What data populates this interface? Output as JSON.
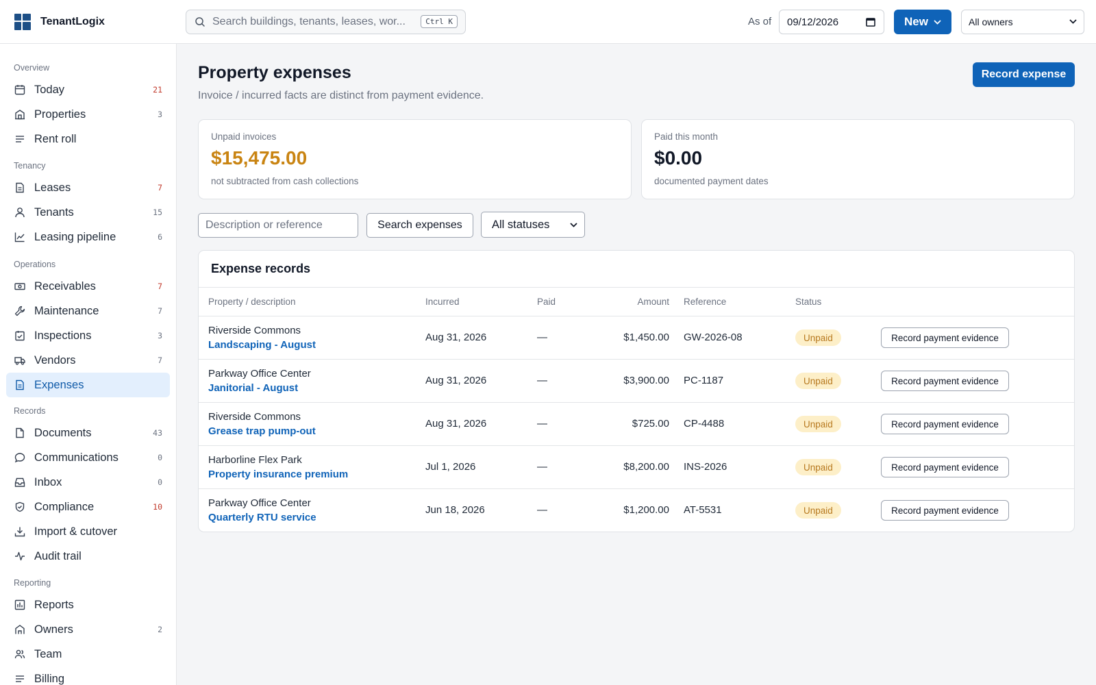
{
  "app": {
    "name": "TenantLogix"
  },
  "topbar": {
    "search_placeholder": "Search buildings, tenants, leases, wor...",
    "search_shortcut": "Ctrl K",
    "as_of_label": "As of",
    "as_of_date": "09/12/2026",
    "new_label": "New",
    "owner_filter": "All owners"
  },
  "sidebar": {
    "sections": [
      {
        "title": "Overview",
        "items": [
          {
            "label": "Today",
            "icon": "calendar-icon",
            "count": "21",
            "count_color": "red"
          },
          {
            "label": "Properties",
            "icon": "building-icon",
            "count": "3"
          },
          {
            "label": "Rent roll",
            "icon": "list-icon",
            "count": ""
          }
        ]
      },
      {
        "title": "Tenancy",
        "items": [
          {
            "label": "Leases",
            "icon": "document-icon",
            "count": "7",
            "count_color": "red"
          },
          {
            "label": "Tenants",
            "icon": "user-icon",
            "count": "15"
          },
          {
            "label": "Leasing pipeline",
            "icon": "chart-line-icon",
            "count": "6"
          }
        ]
      },
      {
        "title": "Operations",
        "items": [
          {
            "label": "Receivables",
            "icon": "cash-icon",
            "count": "7",
            "count_color": "red"
          },
          {
            "label": "Maintenance",
            "icon": "wrench-icon",
            "count": "7"
          },
          {
            "label": "Inspections",
            "icon": "clipboard-check-icon",
            "count": "3"
          },
          {
            "label": "Vendors",
            "icon": "truck-icon",
            "count": "7"
          },
          {
            "label": "Expenses",
            "icon": "receipt-icon",
            "count": "",
            "active": true
          }
        ]
      },
      {
        "title": "Records",
        "items": [
          {
            "label": "Documents",
            "icon": "file-icon",
            "count": "43"
          },
          {
            "label": "Communications",
            "icon": "chat-icon",
            "count": "0"
          },
          {
            "label": "Inbox",
            "icon": "inbox-icon",
            "count": "0"
          },
          {
            "label": "Compliance",
            "icon": "shield-icon",
            "count": "10",
            "count_color": "red"
          },
          {
            "label": "Import & cutover",
            "icon": "download-icon",
            "count": ""
          },
          {
            "label": "Audit trail",
            "icon": "activity-icon",
            "count": ""
          }
        ]
      },
      {
        "title": "Reporting",
        "items": [
          {
            "label": "Reports",
            "icon": "bar-chart-icon",
            "count": ""
          },
          {
            "label": "Owners",
            "icon": "home-icon",
            "count": "2"
          },
          {
            "label": "Team",
            "icon": "users-icon",
            "count": ""
          },
          {
            "label": "Billing",
            "icon": "list-icon",
            "count": ""
          }
        ]
      }
    ]
  },
  "page": {
    "title": "Property expenses",
    "subtitle": "Invoice / incurred facts are distinct from payment evidence.",
    "record_expense_label": "Record expense"
  },
  "summary_cards": [
    {
      "label": "Unpaid invoices",
      "value": "$15,475.00",
      "note": "not subtracted from cash collections",
      "value_color": "#c98412"
    },
    {
      "label": "Paid this month",
      "value": "$0.00",
      "note": "documented payment dates",
      "value_color": "#111827"
    }
  ],
  "filters": {
    "search_placeholder": "Description or reference",
    "search_button": "Search expenses",
    "status_value": "All statuses"
  },
  "expense_table": {
    "title": "Expense records",
    "columns": [
      "Property / description",
      "Incurred",
      "Paid",
      "Amount",
      "Reference",
      "Status"
    ],
    "rows": [
      {
        "property": "Riverside Commons",
        "description": "Landscaping - August",
        "incurred": "Aug 31, 2026",
        "paid": "—",
        "amount": "$1,450.00",
        "reference": "GW-2026-08",
        "status": "Unpaid",
        "action": "Record payment evidence"
      },
      {
        "property": "Parkway Office Center",
        "description": "Janitorial - August",
        "incurred": "Aug 31, 2026",
        "paid": "—",
        "amount": "$3,900.00",
        "reference": "PC-1187",
        "status": "Unpaid",
        "action": "Record payment evidence"
      },
      {
        "property": "Riverside Commons",
        "description": "Grease trap pump-out",
        "incurred": "Aug 31, 2026",
        "paid": "—",
        "amount": "$725.00",
        "reference": "CP-4488",
        "status": "Unpaid",
        "action": "Record payment evidence"
      },
      {
        "property": "Harborline Flex Park",
        "description": "Property insurance premium",
        "incurred": "Jul 1, 2026",
        "paid": "—",
        "amount": "$8,200.00",
        "reference": "INS-2026",
        "status": "Unpaid",
        "action": "Record payment evidence"
      },
      {
        "property": "Parkway Office Center",
        "description": "Quarterly RTU service",
        "incurred": "Jun 18, 2026",
        "paid": "—",
        "amount": "$1,200.00",
        "reference": "AT-5531",
        "status": "Unpaid",
        "action": "Record payment evidence"
      }
    ]
  }
}
